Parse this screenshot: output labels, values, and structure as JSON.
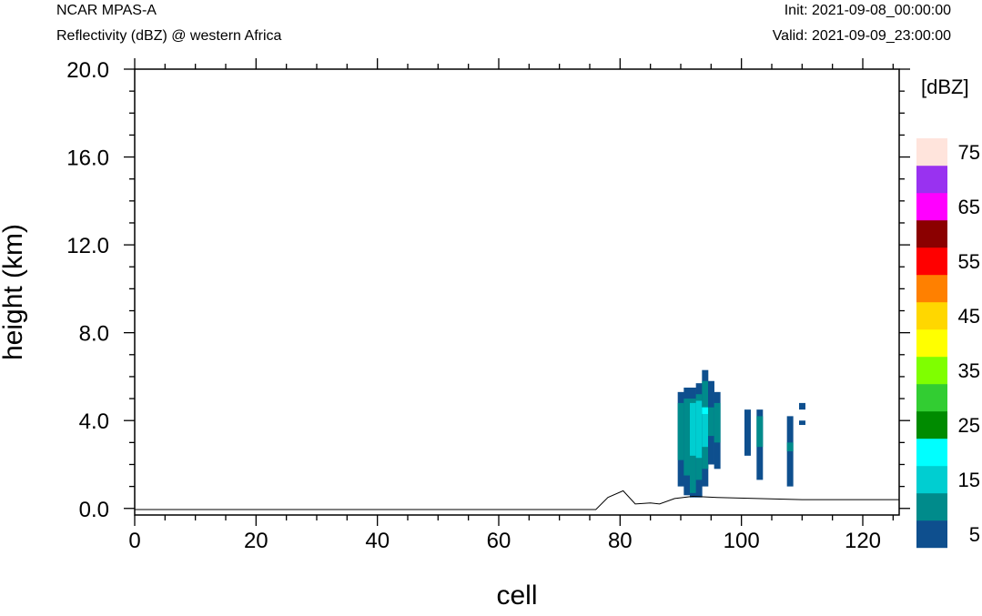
{
  "header": {
    "model": "NCAR MPAS-A",
    "field": "Reflectivity (dBZ) @ western Africa",
    "init": "Init: 2021-09-08_00:00:00",
    "valid": "Valid: 2021-09-09_23:00:00"
  },
  "chart_data": {
    "type": "heatmap",
    "xlabel": "cell",
    "ylabel": "height (km)",
    "xlim": [
      0,
      126
    ],
    "ylim": [
      -0.3,
      20.0
    ],
    "x_ticks": [
      0,
      20,
      40,
      60,
      80,
      100,
      120
    ],
    "x_tick_labels": [
      "0",
      "20",
      "40",
      "60",
      "80",
      "100",
      "120"
    ],
    "y_ticks": [
      0,
      4,
      8,
      12,
      16,
      20
    ],
    "y_tick_labels": [
      "0.0",
      "4.0",
      "8.0",
      "12.0",
      "16.0",
      "20.0"
    ],
    "colorbar": {
      "unit_label": "[dBZ]",
      "levels": [
        5,
        10,
        15,
        20,
        25,
        30,
        35,
        40,
        45,
        50,
        55,
        60,
        65,
        70,
        75
      ],
      "labels": [
        "5",
        "15",
        "25",
        "35",
        "45",
        "55",
        "65",
        "75"
      ],
      "colors": [
        "#0e4f8e",
        "#008b8b",
        "#00ced1",
        "#00ffff",
        "#008b00",
        "#32cd32",
        "#7fff00",
        "#ffff00",
        "#ffd700",
        "#ff8000",
        "#ff0000",
        "#8b0000",
        "#ff00ff",
        "#9932f0",
        "#ffe4dc"
      ]
    },
    "terrain": [
      [
        0,
        -0.05
      ],
      [
        76,
        -0.05
      ],
      [
        78,
        0.5
      ],
      [
        80.5,
        0.8
      ],
      [
        82.5,
        0.2
      ],
      [
        85,
        0.25
      ],
      [
        86.5,
        0.2
      ],
      [
        89,
        0.45
      ],
      [
        92,
        0.55
      ],
      [
        96,
        0.5
      ],
      [
        110,
        0.4
      ],
      [
        126,
        0.4
      ]
    ],
    "cells": [
      {
        "x": 90,
        "y0": 1.0,
        "y1": 5.3,
        "v": 5
      },
      {
        "x": 90,
        "y0": 2.2,
        "y1": 4.8,
        "v": 10
      },
      {
        "x": 91,
        "y0": 0.6,
        "y1": 5.5,
        "v": 5
      },
      {
        "x": 91,
        "y0": 1.5,
        "y1": 5.0,
        "v": 10
      },
      {
        "x": 92,
        "y0": 0.5,
        "y1": 5.5,
        "v": 5
      },
      {
        "x": 92,
        "y0": 0.7,
        "y1": 5.0,
        "v": 10
      },
      {
        "x": 92,
        "y0": 2.4,
        "y1": 4.8,
        "v": 15
      },
      {
        "x": 93,
        "y0": 0.5,
        "y1": 5.7,
        "v": 5
      },
      {
        "x": 93,
        "y0": 1.3,
        "y1": 5.2,
        "v": 10
      },
      {
        "x": 93,
        "y0": 2.3,
        "y1": 4.9,
        "v": 15
      },
      {
        "x": 94,
        "y0": 1.0,
        "y1": 6.3,
        "v": 5
      },
      {
        "x": 94,
        "y0": 1.8,
        "y1": 5.8,
        "v": 10
      },
      {
        "x": 94,
        "y0": 2.8,
        "y1": 4.6,
        "v": 15
      },
      {
        "x": 94,
        "y0": 4.3,
        "y1": 4.6,
        "v": 20
      },
      {
        "x": 95,
        "y0": 2.0,
        "y1": 5.8,
        "v": 5
      },
      {
        "x": 95,
        "y0": 3.3,
        "y1": 4.6,
        "v": 10
      },
      {
        "x": 96,
        "y0": 1.8,
        "y1": 5.3,
        "v": 5
      },
      {
        "x": 96,
        "y0": 3.0,
        "y1": 4.8,
        "v": 10
      },
      {
        "x": 101,
        "y0": 2.4,
        "y1": 4.5,
        "v": 5
      },
      {
        "x": 103,
        "y0": 1.3,
        "y1": 4.5,
        "v": 5
      },
      {
        "x": 103,
        "y0": 2.8,
        "y1": 4.2,
        "v": 10
      },
      {
        "x": 108,
        "y0": 1.0,
        "y1": 4.2,
        "v": 5
      },
      {
        "x": 108,
        "y0": 2.6,
        "y1": 3.0,
        "v": 10
      },
      {
        "x": 110,
        "y0": 3.8,
        "y1": 4.0,
        "v": 5
      },
      {
        "x": 110,
        "y0": 4.5,
        "y1": 4.8,
        "v": 5
      }
    ]
  }
}
